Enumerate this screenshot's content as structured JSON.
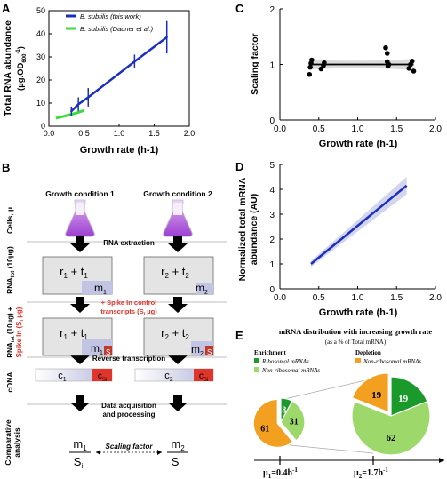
{
  "panels": {
    "A": {
      "letter": "A",
      "ylabel": "Total RNA abundance",
      "yunit_prefix": "(µg.OD",
      "yunit_sub": "600",
      "yunit_sup": "-1",
      "yunit_suffix": ")",
      "xlabel": "Growth rate (h-1)",
      "legend": [
        "B. subtilis (this work)",
        "B. subtilis (Dauner et al.)"
      ],
      "yticks": [
        "0",
        "10",
        "20",
        "30",
        "40",
        "50"
      ],
      "xticks": [
        "0.0",
        "0.5",
        "1.0",
        "1.5",
        "2.0"
      ]
    },
    "B": {
      "letter": "B",
      "cond1": "Growth condition 1",
      "cond2": "Growth condition 2",
      "row_cells": "Cells, µ",
      "row_rna": "RNAtot (10µg)",
      "row_spike": "RNAtot (10µg) + Spike In (Si µg)",
      "row_cdna": "cDNA",
      "row_analysis": "Comparative analysis",
      "step_extraction": "RNA extraction",
      "step_spike": "+ Spike In control transcripts (Si µg)",
      "step_rt": "Reverse transcription",
      "step_acq1": "Data acquisition",
      "step_acq2": "and processing",
      "box1": "r1 + t1",
      "box2": "r2 + t2",
      "m1": "m1",
      "m2": "m2",
      "s_label": "S",
      "c1": "c1",
      "c2": "c2",
      "csi": "cSi",
      "scaling": "Scaling factor",
      "frac1_num": "m1",
      "frac1_den": "Si",
      "frac2_num": "m2",
      "frac2_den": "Si"
    },
    "C": {
      "letter": "C",
      "ylabel": "Scaling factor",
      "xlabel": "Growth rate (h-1)",
      "yticks": [
        "0",
        "1",
        "2"
      ],
      "xticks": [
        "0.0",
        "0.5",
        "1.0",
        "1.5",
        "2.0"
      ]
    },
    "D": {
      "letter": "D",
      "ylabel1": "Normalized total mRNA",
      "ylabel2": "abundance (AU)",
      "xlabel": "Growth rate (h-1)",
      "yticks": [
        "0",
        "1",
        "2",
        "3",
        "4",
        "5"
      ],
      "xticks": [
        "0.0",
        "0.5",
        "1.0",
        "1.5",
        "2.0"
      ]
    },
    "E": {
      "letter": "E",
      "title": "mRNA distribution with increasing growth rate",
      "subtitle": "(as a % of Total mRNA)",
      "enrichment": "Enrichment",
      "depletion": "Depletion",
      "leg_ribo": "Ribosomal mRNAs",
      "leg_nonribo": "Non-ribosomal mRNAs",
      "leg_nonribo_dep": "Non-ribosomal mRNAs",
      "mu1": "µ1=0.4h-1",
      "mu2": "µ2=1.7h-1",
      "pie1": {
        "green": "8",
        "light": "31",
        "orange": "61"
      },
      "pie2": {
        "green": "19",
        "light": "62",
        "orange": "19"
      }
    }
  },
  "chart_data": [
    {
      "type": "line",
      "title": "",
      "xlabel": "Growth rate (h-1)",
      "ylabel": "Total RNA abundance (µg.OD600-1)",
      "xlim": [
        0,
        2.0
      ],
      "ylim": [
        0,
        50
      ],
      "series": [
        {
          "name": "B. subtilis (this work)",
          "x": [
            0.32,
            0.42,
            0.56,
            1.22,
            1.68
          ],
          "y": [
            6.5,
            9.5,
            12.5,
            28,
            38.5
          ],
          "err": [
            2,
            3,
            4,
            3,
            7
          ]
        },
        {
          "name": "B. subtilis (Dauner et al.)",
          "x": [
            0.1,
            0.2,
            0.3,
            0.4,
            0.5
          ],
          "y": [
            3.5,
            4.2,
            5.0,
            5.8,
            6.8
          ]
        }
      ]
    },
    {
      "type": "scatter",
      "title": "",
      "xlabel": "Growth rate (h-1)",
      "ylabel": "Scaling factor",
      "xlim": [
        0,
        2.0
      ],
      "ylim": [
        0,
        2
      ],
      "x": [
        0.38,
        0.39,
        0.4,
        0.41,
        0.53,
        0.56,
        0.57,
        1.36,
        1.38,
        1.38,
        1.39,
        1.4,
        1.66,
        1.68,
        1.7,
        1.72
      ],
      "y": [
        0.82,
        0.95,
        1.02,
        1.08,
        0.92,
        0.98,
        1.03,
        1.3,
        1.2,
        1.05,
        0.97,
        1.0,
        0.93,
        1.0,
        1.06,
        0.88
      ],
      "fit": {
        "x": [
          0.38,
          1.72
        ],
        "y": [
          1.0,
          1.0
        ]
      }
    },
    {
      "type": "line",
      "title": "",
      "xlabel": "Growth rate (h-1)",
      "ylabel": "Normalized total mRNA abundance (AU)",
      "xlim": [
        0,
        2.0
      ],
      "ylim": [
        0,
        5
      ],
      "series": [
        {
          "x": [
            0.4,
            1.63
          ],
          "y": [
            1.0,
            4.15
          ]
        }
      ]
    },
    {
      "type": "pie",
      "title": "mRNA distribution with increasing growth rate",
      "pies": [
        {
          "label": "µ1=0.4h-1",
          "labels": [
            "Ribosomal mRNAs",
            "Non-ribosomal mRNAs (enrichment)",
            "Non-ribosomal mRNAs (depletion)"
          ],
          "values": [
            8,
            31,
            61
          ]
        },
        {
          "label": "µ2=1.7h-1",
          "labels": [
            "Ribosomal mRNAs",
            "Non-ribosomal mRNAs (enrichment)",
            "Non-ribosomal mRNAs (depletion)"
          ],
          "values": [
            19,
            62,
            19
          ]
        }
      ]
    }
  ],
  "colors": {
    "blue": "#1a2fbf",
    "green_line": "#3ddc3d",
    "pie_green": "#1a9a2a",
    "pie_light": "#9cd86a",
    "pie_orange": "#f3a020",
    "red": "#e0352b",
    "box_grey": "#e3e3e3",
    "strip_blue": "#c4c6e4"
  }
}
